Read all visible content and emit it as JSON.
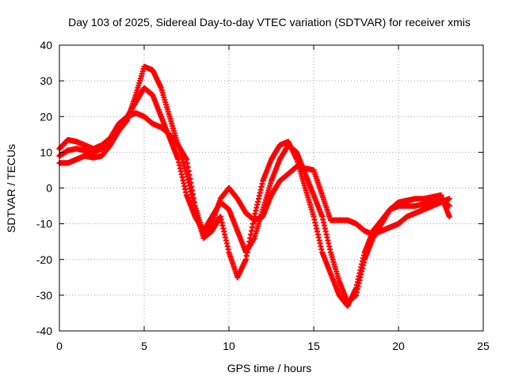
{
  "chart_data": {
    "type": "scatter",
    "title": "Day 103 of 2025, Sidereal Day-to-day VTEC variation (SDTVAR) for receiver xmis",
    "xlabel": "GPS time / hours",
    "ylabel": "SDTVAR / TECUs",
    "xlim": [
      0,
      25
    ],
    "ylim": [
      -40,
      40
    ],
    "xticks": [
      0,
      5,
      10,
      15,
      20,
      25
    ],
    "yticks": [
      -40,
      -30,
      -20,
      -10,
      0,
      10,
      20,
      30,
      40
    ],
    "grid": true,
    "marker": "+",
    "color": "#ff0000",
    "series": [
      {
        "x": [
          0.0,
          0.5,
          1.0,
          1.5,
          2.0,
          2.5,
          3.0,
          3.5,
          4.0,
          4.5,
          5.0,
          5.5,
          6.0,
          6.5,
          7.0,
          7.5,
          8.0,
          8.5,
          9.0,
          9.5,
          10.0,
          10.5,
          11.0,
          11.5,
          12.0,
          12.5,
          13.0,
          13.5,
          14.0,
          14.5,
          15.0,
          15.5,
          16.0,
          16.5,
          17.0,
          17.5,
          18.0,
          18.5,
          19.0,
          19.5,
          20.0,
          20.5,
          21.0,
          21.5,
          22.0,
          22.5,
          23.0
        ],
        "y": [
          11,
          13.5,
          13,
          12,
          11,
          12,
          14,
          18,
          20,
          21,
          20,
          18,
          17,
          15,
          12,
          8,
          -5,
          -13,
          -10,
          -3,
          0,
          -3,
          -7,
          -9,
          -8,
          -2,
          2,
          4,
          6,
          5.5,
          5,
          -2,
          -9,
          -9,
          -9,
          -10,
          -12,
          -13,
          -12,
          -11,
          -10,
          -8,
          -7,
          -6,
          -5,
          -4,
          -3
        ]
      },
      {
        "x": [
          0.0,
          0.5,
          1.0,
          1.5,
          2.0,
          2.5,
          3.0,
          3.5,
          4.0,
          4.5,
          5.0,
          5.5,
          6.0,
          6.5,
          7.0,
          7.5,
          8.0,
          8.5,
          9.0,
          9.5,
          10.0,
          10.5,
          11.0,
          11.5,
          12.0,
          12.5,
          13.0,
          13.5,
          14.0,
          14.5,
          15.0,
          15.5,
          16.0,
          16.5,
          17.0,
          17.5,
          18.0,
          18.5,
          19.0,
          19.5,
          20.0,
          20.5,
          21.0,
          21.5,
          22.0,
          22.5,
          23.0
        ],
        "y": [
          9,
          10.5,
          11,
          10.5,
          10,
          11,
          13,
          17,
          20,
          24,
          28,
          26,
          20,
          14,
          8,
          -2,
          -8,
          -12,
          -8,
          -4,
          -6,
          -12,
          -18,
          -14,
          -6,
          2,
          8,
          12,
          10,
          4,
          -2,
          -8,
          -18,
          -26,
          -32,
          -30,
          -20,
          -14,
          -10,
          -6,
          -5,
          -5,
          -5,
          -4.5,
          -4,
          -3,
          -5
        ]
      },
      {
        "x": [
          0.0,
          0.5,
          1.0,
          1.5,
          2.0,
          2.5,
          3.0,
          3.5,
          4.0,
          4.5,
          5.0,
          5.5,
          6.0,
          6.5,
          7.0,
          7.5,
          8.0,
          8.5,
          9.0,
          9.5,
          10.0,
          10.5,
          11.0,
          11.5,
          12.0,
          12.5,
          13.0,
          13.5,
          14.0,
          14.5,
          15.0,
          15.5,
          16.0,
          16.5,
          17.0,
          17.5,
          18.0,
          18.5,
          19.0,
          19.5,
          20.0,
          20.5,
          21.0,
          21.5,
          22.0,
          22.5,
          23.0
        ],
        "y": [
          7,
          7,
          8,
          9,
          8.5,
          9,
          12,
          16,
          19,
          26,
          34,
          33,
          28,
          20,
          12,
          4,
          -6,
          -14,
          -12,
          -8,
          -18,
          -25,
          -20,
          -8,
          2,
          8,
          12,
          13,
          8,
          0,
          -8,
          -18,
          -24,
          -30,
          -33,
          -28,
          -18,
          -12,
          -9,
          -6,
          -4,
          -3.5,
          -3,
          -3,
          -2.5,
          -2,
          -8
        ]
      }
    ]
  }
}
